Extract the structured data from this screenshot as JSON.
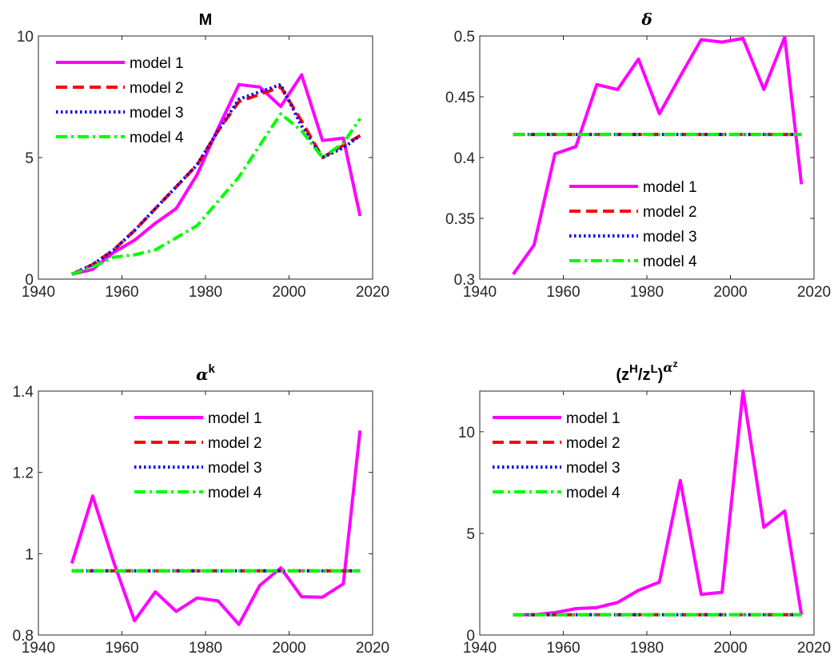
{
  "chart_data": [
    {
      "type": "line",
      "title": "M",
      "xlabel": "",
      "ylabel": "",
      "xlim": [
        1940,
        2020
      ],
      "ylim": [
        0,
        10
      ],
      "xticks": [
        1940,
        1960,
        1980,
        2000,
        2020
      ],
      "yticks": [
        0,
        5,
        10
      ],
      "legend": "top-left",
      "series": [
        {
          "name": "model 1",
          "color": "#ff00ff",
          "style": "solid",
          "x": [
            1948,
            1953,
            1958,
            1963,
            1968,
            1973,
            1978,
            1983,
            1988,
            1993,
            1998,
            2003,
            2008,
            2013,
            2017
          ],
          "y": [
            0.2,
            0.4,
            1.1,
            1.6,
            2.3,
            2.9,
            4.3,
            6.2,
            8.0,
            7.9,
            7.1,
            8.4,
            5.7,
            5.8,
            2.6
          ]
        },
        {
          "name": "model 2",
          "color": "#ff0000",
          "style": "dashed",
          "x": [
            1948,
            1953,
            1958,
            1963,
            1968,
            1973,
            1978,
            1983,
            1988,
            1993,
            1998,
            2003,
            2008,
            2013,
            2017
          ],
          "y": [
            0.2,
            0.6,
            1.2,
            2.0,
            2.9,
            3.8,
            4.7,
            6.1,
            7.3,
            7.6,
            7.9,
            6.5,
            5.0,
            5.5,
            5.9
          ]
        },
        {
          "name": "model 3",
          "color": "#0000ff",
          "style": "dotted",
          "x": [
            1948,
            1953,
            1958,
            1963,
            1968,
            1973,
            1978,
            1983,
            1988,
            1993,
            1998,
            2003,
            2008,
            2013,
            2017
          ],
          "y": [
            0.2,
            0.6,
            1.2,
            2.0,
            2.9,
            3.8,
            4.7,
            6.1,
            7.4,
            7.7,
            8.0,
            6.3,
            5.0,
            5.4,
            5.9
          ]
        },
        {
          "name": "model 4",
          "color": "#00ff00",
          "style": "dashdot",
          "x": [
            1948,
            1953,
            1958,
            1963,
            1968,
            1973,
            1978,
            1983,
            1988,
            1993,
            1998,
            2003,
            2008,
            2013,
            2017
          ],
          "y": [
            0.2,
            0.5,
            0.9,
            1.0,
            1.2,
            1.7,
            2.2,
            3.2,
            4.2,
            5.5,
            6.8,
            6.1,
            5.0,
            5.6,
            6.6
          ]
        }
      ]
    },
    {
      "type": "line",
      "title": "δ",
      "xlabel": "",
      "ylabel": "",
      "xlim": [
        1940,
        2020
      ],
      "ylim": [
        0.3,
        0.5
      ],
      "xticks": [
        1940,
        1960,
        1980,
        2000,
        2020
      ],
      "yticks": [
        0.3,
        0.35,
        0.4,
        0.45,
        0.5
      ],
      "ytick_labels": [
        "0.3",
        "0.35",
        "0.4",
        "0.45",
        "0.5"
      ],
      "legend": "lower-right",
      "series": [
        {
          "name": "model 1",
          "color": "#ff00ff",
          "style": "solid",
          "x": [
            1948,
            1953,
            1958,
            1963,
            1968,
            1973,
            1978,
            1983,
            1988,
            1993,
            1998,
            2003,
            2008,
            2013,
            2017
          ],
          "y": [
            0.304,
            0.328,
            0.403,
            0.409,
            0.46,
            0.456,
            0.481,
            0.436,
            0.467,
            0.497,
            0.495,
            0.498,
            0.456,
            0.499,
            0.378
          ]
        },
        {
          "name": "model 2",
          "color": "#ff0000",
          "style": "dashed",
          "x": [
            1948,
            2017
          ],
          "y": [
            0.419,
            0.419
          ]
        },
        {
          "name": "model 3",
          "color": "#0000ff",
          "style": "dotted",
          "x": [
            1948,
            2017
          ],
          "y": [
            0.419,
            0.419
          ]
        },
        {
          "name": "model 4",
          "color": "#00ff00",
          "style": "dashdot",
          "x": [
            1948,
            2017
          ],
          "y": [
            0.419,
            0.419
          ]
        }
      ]
    },
    {
      "type": "line",
      "title": "αk",
      "xlabel": "",
      "ylabel": "",
      "xlim": [
        1940,
        2020
      ],
      "ylim": [
        0.8,
        1.4
      ],
      "xticks": [
        1940,
        1960,
        1980,
        2000,
        2020
      ],
      "yticks": [
        0.8,
        1.0,
        1.2,
        1.4
      ],
      "ytick_labels": [
        "0.8",
        "1",
        "1.2",
        "1.4"
      ],
      "legend": "top-center",
      "series": [
        {
          "name": "model 1",
          "color": "#ff00ff",
          "style": "solid",
          "x": [
            1948,
            1953,
            1958,
            1963,
            1968,
            1973,
            1978,
            1983,
            1988,
            1993,
            1998,
            2003,
            2008,
            2013,
            2017
          ],
          "y": [
            0.976,
            1.142,
            0.98,
            0.835,
            0.906,
            0.858,
            0.891,
            0.884,
            0.826,
            0.922,
            0.965,
            0.894,
            0.893,
            0.926,
            1.303
          ]
        },
        {
          "name": "model 2",
          "color": "#ff0000",
          "style": "dashed",
          "x": [
            1948,
            2017
          ],
          "y": [
            0.958,
            0.958
          ]
        },
        {
          "name": "model 3",
          "color": "#0000ff",
          "style": "dotted",
          "x": [
            1948,
            2017
          ],
          "y": [
            0.958,
            0.958
          ]
        },
        {
          "name": "model 4",
          "color": "#00ff00",
          "style": "dashdot",
          "x": [
            1948,
            2017
          ],
          "y": [
            0.958,
            0.958
          ]
        }
      ]
    },
    {
      "type": "line",
      "title": "(zH/zL)αz",
      "xlabel": "",
      "ylabel": "",
      "xlim": [
        1940,
        2020
      ],
      "ylim": [
        0,
        12
      ],
      "xticks": [
        1940,
        1960,
        1980,
        2000,
        2020
      ],
      "yticks": [
        0,
        5,
        10
      ],
      "legend": "top-left",
      "series": [
        {
          "name": "model 1",
          "color": "#ff00ff",
          "style": "solid",
          "x": [
            1948,
            1953,
            1958,
            1963,
            1968,
            1973,
            1978,
            1983,
            1988,
            1993,
            1998,
            2003,
            2008,
            2013,
            2017
          ],
          "y": [
            1.0,
            1.0,
            1.1,
            1.3,
            1.35,
            1.6,
            2.2,
            2.6,
            7.6,
            2.0,
            2.1,
            12.0,
            5.3,
            6.1,
            1.0
          ]
        },
        {
          "name": "model 2",
          "color": "#ff0000",
          "style": "dashed",
          "x": [
            1948,
            2017
          ],
          "y": [
            1.0,
            1.0
          ]
        },
        {
          "name": "model 3",
          "color": "#0000ff",
          "style": "dotted",
          "x": [
            1948,
            2017
          ],
          "y": [
            1.0,
            1.0
          ]
        },
        {
          "name": "model 4",
          "color": "#00ff00",
          "style": "dashdot",
          "x": [
            1948,
            2017
          ],
          "y": [
            1.0,
            1.0
          ]
        }
      ]
    }
  ]
}
